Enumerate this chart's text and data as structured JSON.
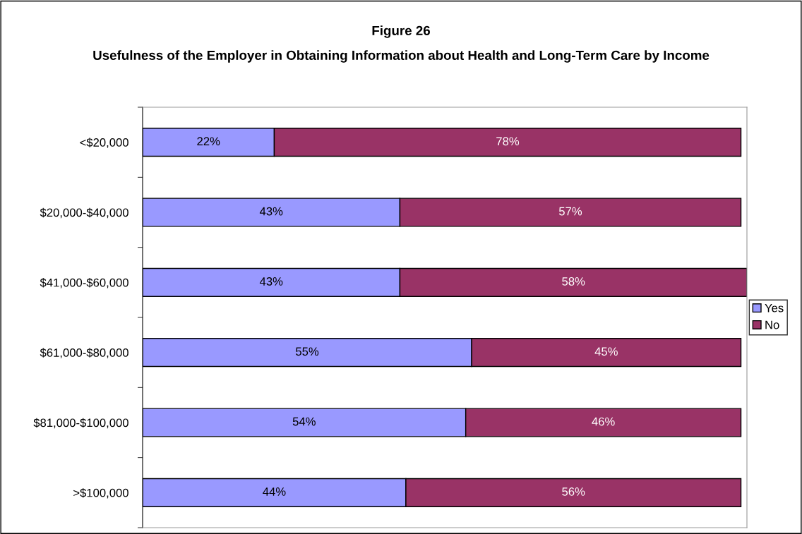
{
  "chart_data": {
    "type": "bar",
    "orientation": "horizontal",
    "stacked": true,
    "title": "Figure 26",
    "subtitle": "Usefulness of the Employer in Obtaining Information about Health and Long-Term Care by Income",
    "categories": [
      "<$20,000",
      "$20,000-$40,000",
      "$41,000-$60,000",
      "$61,000-$80,000",
      "$81,000-$100,000",
      ">$100,000"
    ],
    "series": [
      {
        "name": "Yes",
        "color": "#9999ff",
        "values": [
          22,
          43,
          43,
          55,
          54,
          44
        ],
        "value_labels": [
          "22%",
          "43%",
          "43%",
          "55%",
          "54%",
          "44%"
        ]
      },
      {
        "name": "No",
        "color": "#993366",
        "values": [
          78,
          57,
          58,
          45,
          46,
          56
        ],
        "value_labels": [
          "78%",
          "57%",
          "58%",
          "45%",
          "46%",
          "56%"
        ]
      }
    ],
    "legend": "right",
    "grid": false,
    "tick_labels": "y"
  }
}
